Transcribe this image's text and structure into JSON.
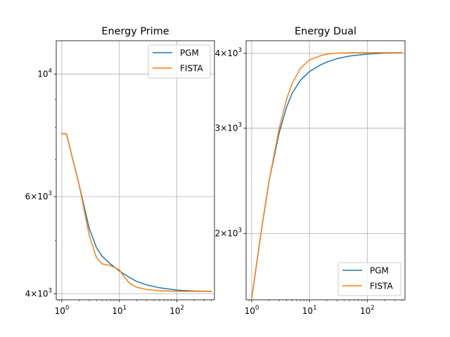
{
  "chart_data": [
    {
      "type": "line",
      "title": "Energy Prime",
      "xscale": "log",
      "yscale": "log",
      "xlim": [
        0.8,
        450
      ],
      "ylim": [
        3900,
        11500
      ],
      "grid": true,
      "legend_loc": "upper right",
      "x_ticks": [
        {
          "value": 1,
          "base": "10",
          "exp": "0"
        },
        {
          "value": 10,
          "base": "10",
          "exp": "1"
        },
        {
          "value": 100,
          "base": "10",
          "exp": "2"
        }
      ],
      "y_ticks": [
        {
          "value": 4000,
          "mant": "4",
          "base": "10",
          "exp": "3"
        },
        {
          "value": 6000,
          "mant": "6",
          "base": "10",
          "exp": "3"
        },
        {
          "value": 10000,
          "mant": "",
          "base": "10",
          "exp": "4"
        }
      ],
      "series": [
        {
          "name": "PGM",
          "color": "#1f77b4",
          "points": [
            [
              1,
              7800
            ],
            [
              1.2,
              7800
            ],
            [
              2,
              6300
            ],
            [
              3,
              5250
            ],
            [
              4,
              4850
            ],
            [
              5,
              4680
            ],
            [
              7,
              4530
            ],
            [
              10,
              4400
            ],
            [
              15,
              4280
            ],
            [
              20,
              4210
            ],
            [
              30,
              4150
            ],
            [
              50,
              4100
            ],
            [
              100,
              4060
            ],
            [
              200,
              4045
            ],
            [
              400,
              4040
            ]
          ]
        },
        {
          "name": "FISTA",
          "color": "#ff7f0e",
          "points": [
            [
              1,
              7800
            ],
            [
              1.2,
              7800
            ],
            [
              2,
              6300
            ],
            [
              3,
              5100
            ],
            [
              4,
              4650
            ],
            [
              5,
              4530
            ],
            [
              7,
              4500
            ],
            [
              10,
              4420
            ],
            [
              12,
              4300
            ],
            [
              15,
              4180
            ],
            [
              20,
              4110
            ],
            [
              30,
              4070
            ],
            [
              50,
              4050
            ],
            [
              100,
              4040
            ],
            [
              200,
              4040
            ],
            [
              400,
              4040
            ]
          ]
        }
      ]
    },
    {
      "type": "line",
      "title": "Energy Dual",
      "xscale": "log",
      "yscale": "log",
      "xlim": [
        0.8,
        450
      ],
      "ylim": [
        1550,
        4200
      ],
      "grid": true,
      "legend_loc": "lower right",
      "x_ticks": [
        {
          "value": 1,
          "base": "10",
          "exp": "0"
        },
        {
          "value": 10,
          "base": "10",
          "exp": "1"
        },
        {
          "value": 100,
          "base": "10",
          "exp": "2"
        }
      ],
      "y_ticks": [
        {
          "value": 2000,
          "mant": "2",
          "base": "10",
          "exp": "3"
        },
        {
          "value": 3000,
          "mant": "3",
          "base": "10",
          "exp": "3"
        },
        {
          "value": 4000,
          "mant": "4",
          "base": "10",
          "exp": "3"
        }
      ],
      "series": [
        {
          "name": "PGM",
          "color": "#1f77b4",
          "points": [
            [
              1,
              1560
            ],
            [
              1.5,
              2050
            ],
            [
              2,
              2450
            ],
            [
              3,
              2950
            ],
            [
              4,
              3250
            ],
            [
              5,
              3430
            ],
            [
              7,
              3610
            ],
            [
              10,
              3730
            ],
            [
              15,
              3820
            ],
            [
              20,
              3870
            ],
            [
              30,
              3920
            ],
            [
              50,
              3960
            ],
            [
              100,
              3990
            ],
            [
              200,
              4005
            ],
            [
              400,
              4010
            ]
          ]
        },
        {
          "name": "FISTA",
          "color": "#ff7f0e",
          "points": [
            [
              1,
              1560
            ],
            [
              1.5,
              2050
            ],
            [
              2,
              2450
            ],
            [
              3,
              3000
            ],
            [
              4,
              3350
            ],
            [
              5,
              3560
            ],
            [
              7,
              3780
            ],
            [
              10,
              3900
            ],
            [
              15,
              3960
            ],
            [
              20,
              3990
            ],
            [
              30,
              4005
            ],
            [
              50,
              4010
            ],
            [
              100,
              4012
            ],
            [
              200,
              4012
            ],
            [
              400,
              4012
            ]
          ]
        }
      ]
    }
  ]
}
